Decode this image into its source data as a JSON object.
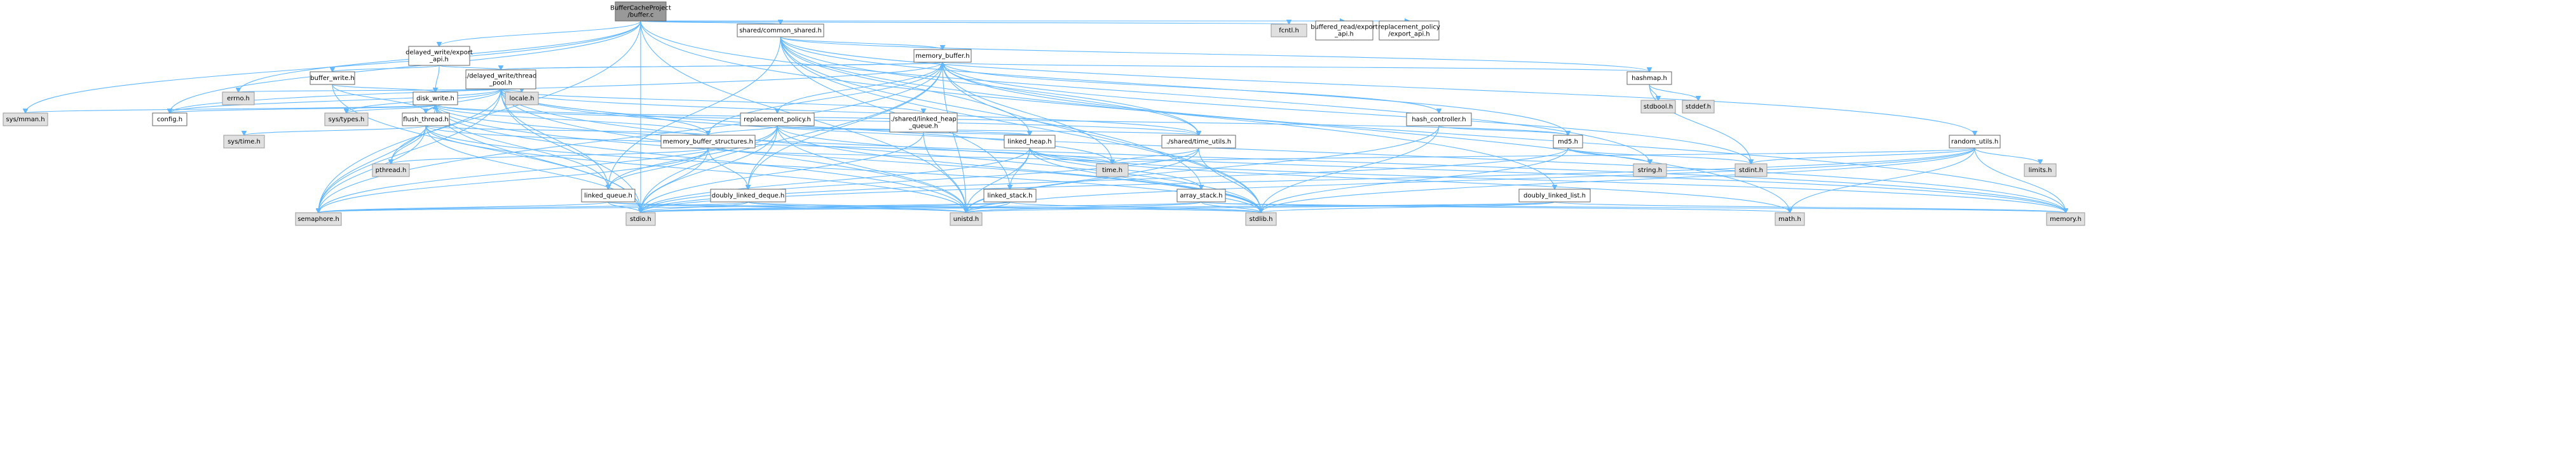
{
  "title": "",
  "nodes": [
    {
      "id": "root",
      "label": "BufferCacheProject\n/buffer.c",
      "kind": "root"
    },
    {
      "id": "fcntl",
      "label": "fcntl.h",
      "kind": "sys"
    },
    {
      "id": "buffered_read",
      "label": "buffered_read/export\n_api.h",
      "kind": "file"
    },
    {
      "id": "repl_export",
      "label": "replacement_policy\n/export_api.h",
      "kind": "file"
    },
    {
      "id": "shared_common",
      "label": "shared/common_shared.h",
      "kind": "file"
    },
    {
      "id": "delayed_export",
      "label": "delayed_write/export\n_api.h",
      "kind": "file"
    },
    {
      "id": "memory_buffer",
      "label": "memory_buffer.h",
      "kind": "file"
    },
    {
      "id": "delayed_thread",
      "label": "./delayed_write/thread\n_pool.h",
      "kind": "file"
    },
    {
      "id": "buffer_write",
      "label": "buffer_write.h",
      "kind": "file"
    },
    {
      "id": "hashmap",
      "label": "hashmap.h",
      "kind": "file"
    },
    {
      "id": "stdbool",
      "label": "stdbool.h",
      "kind": "sys"
    },
    {
      "id": "stddef",
      "label": "stddef.h",
      "kind": "sys"
    },
    {
      "id": "errno",
      "label": "errno.h",
      "kind": "sys"
    },
    {
      "id": "locale",
      "label": "locale.h",
      "kind": "sys"
    },
    {
      "id": "disk_write",
      "label": "disk_write.h",
      "kind": "file"
    },
    {
      "id": "sys_mman",
      "label": "sys/mman.h",
      "kind": "sys"
    },
    {
      "id": "config",
      "label": "config.h",
      "kind": "file"
    },
    {
      "id": "sys_types",
      "label": "sys/types.h",
      "kind": "sys"
    },
    {
      "id": "flush_thread",
      "label": "flush_thread.h",
      "kind": "file"
    },
    {
      "id": "shared_lheap_q",
      "label": "./shared/linked_heap\n_queue.h",
      "kind": "file"
    },
    {
      "id": "repl_policy",
      "label": "replacement_policy.h",
      "kind": "file"
    },
    {
      "id": "hash_controller",
      "label": "hash_controller.h",
      "kind": "file"
    },
    {
      "id": "sys_time",
      "label": "sys/time.h",
      "kind": "sys"
    },
    {
      "id": "mem_structures",
      "label": "memory_buffer_structures.h",
      "kind": "file"
    },
    {
      "id": "linked_heap",
      "label": "linked_heap.h",
      "kind": "file"
    },
    {
      "id": "time_utils",
      "label": "./shared/time_utils.h",
      "kind": "file"
    },
    {
      "id": "md5",
      "label": "md5.h",
      "kind": "file"
    },
    {
      "id": "random_utils",
      "label": "random_utils.h",
      "kind": "file"
    },
    {
      "id": "pthread",
      "label": "pthread.h",
      "kind": "sys"
    },
    {
      "id": "time_h",
      "label": "time.h",
      "kind": "sys"
    },
    {
      "id": "string_h",
      "label": "string.h",
      "kind": "sys"
    },
    {
      "id": "stdint",
      "label": "stdint.h",
      "kind": "sys"
    },
    {
      "id": "limits",
      "label": "limits.h",
      "kind": "sys"
    },
    {
      "id": "linked_queue",
      "label": "linked_queue.h",
      "kind": "file"
    },
    {
      "id": "doubly_deque",
      "label": "doubly_linked_deque.h",
      "kind": "file"
    },
    {
      "id": "linked_stack",
      "label": "linked_stack.h",
      "kind": "file"
    },
    {
      "id": "array_stack",
      "label": "array_stack.h",
      "kind": "file"
    },
    {
      "id": "doubly_list",
      "label": "doubly_linked_list.h",
      "kind": "file"
    },
    {
      "id": "semaphore",
      "label": "semaphore.h",
      "kind": "sys"
    },
    {
      "id": "stdio",
      "label": "stdio.h",
      "kind": "sys"
    },
    {
      "id": "unistd",
      "label": "unistd.h",
      "kind": "sys"
    },
    {
      "id": "stdlib",
      "label": "stdlib.h",
      "kind": "sys"
    },
    {
      "id": "math",
      "label": "math.h",
      "kind": "sys"
    },
    {
      "id": "memory_h",
      "label": "memory.h",
      "kind": "sys"
    }
  ],
  "edges": [
    [
      "root",
      "fcntl"
    ],
    [
      "root",
      "buffered_read"
    ],
    [
      "root",
      "repl_export"
    ],
    [
      "root",
      "shared_common"
    ],
    [
      "root",
      "delayed_export"
    ],
    [
      "root",
      "errno"
    ],
    [
      "root",
      "sys_mman"
    ],
    [
      "root",
      "config"
    ],
    [
      "root",
      "semaphore"
    ],
    [
      "root",
      "stdio"
    ],
    [
      "root",
      "unistd"
    ],
    [
      "root",
      "string_h"
    ],
    [
      "root",
      "math"
    ],
    [
      "shared_common",
      "memory_buffer"
    ],
    [
      "shared_common",
      "hashmap"
    ],
    [
      "shared_common",
      "random_utils"
    ],
    [
      "shared_common",
      "md5"
    ],
    [
      "shared_common",
      "doubly_list"
    ],
    [
      "shared_common",
      "time_utils"
    ],
    [
      "shared_common",
      "linked_heap"
    ],
    [
      "shared_common",
      "linked_queue"
    ],
    [
      "shared_common",
      "linked_stack"
    ],
    [
      "shared_common",
      "array_stack"
    ],
    [
      "shared_common",
      "stdlib"
    ],
    [
      "delayed_export",
      "delayed_thread"
    ],
    [
      "delayed_export",
      "buffer_write"
    ],
    [
      "delayed_export",
      "disk_write"
    ],
    [
      "memory_buffer",
      "delayed_thread"
    ],
    [
      "memory_buffer",
      "repl_policy"
    ],
    [
      "memory_buffer",
      "hash_controller"
    ],
    [
      "memory_buffer",
      "mem_structures"
    ],
    [
      "memory_buffer",
      "time_utils"
    ],
    [
      "memory_buffer",
      "hashmap"
    ],
    [
      "memory_buffer",
      "config"
    ],
    [
      "memory_buffer",
      "semaphore"
    ],
    [
      "memory_buffer",
      "stdio"
    ],
    [
      "memory_buffer",
      "unistd"
    ],
    [
      "memory_buffer",
      "stdint"
    ],
    [
      "memory_buffer",
      "doubly_deque"
    ],
    [
      "memory_buffer",
      "memory_h"
    ],
    [
      "memory_buffer",
      "time_h"
    ],
    [
      "memory_buffer",
      "stdlib"
    ],
    [
      "delayed_thread",
      "memory_buffer"
    ],
    [
      "delayed_thread",
      "locale"
    ],
    [
      "delayed_thread",
      "errno"
    ],
    [
      "delayed_thread",
      "disk_write"
    ],
    [
      "delayed_thread",
      "flush_thread"
    ],
    [
      "delayed_thread",
      "shared_lheap_q"
    ],
    [
      "delayed_thread",
      "mem_structures"
    ],
    [
      "delayed_thread",
      "linked_queue"
    ],
    [
      "delayed_thread",
      "time_utils"
    ],
    [
      "delayed_thread",
      "config"
    ],
    [
      "delayed_thread",
      "pthread"
    ],
    [
      "delayed_thread",
      "semaphore"
    ],
    [
      "delayed_thread",
      "stdio"
    ],
    [
      "delayed_thread",
      "unistd"
    ],
    [
      "delayed_thread",
      "stdlib"
    ],
    [
      "delayed_thread",
      "sys_types"
    ],
    [
      "delayed_thread",
      "memory_h"
    ],
    [
      "delayed_thread",
      "time_h"
    ],
    [
      "buffer_write",
      "disk_write"
    ],
    [
      "buffer_write",
      "flush_thread"
    ],
    [
      "buffer_write",
      "stdio"
    ],
    [
      "hashmap",
      "stdbool"
    ],
    [
      "hashmap",
      "stddef"
    ],
    [
      "hashmap",
      "stdint"
    ],
    [
      "disk_write",
      "flush_thread"
    ],
    [
      "disk_write",
      "sys_mman"
    ],
    [
      "disk_write",
      "config"
    ],
    [
      "disk_write",
      "sys_types"
    ],
    [
      "disk_write",
      "md5"
    ],
    [
      "disk_write",
      "mem_structures"
    ],
    [
      "disk_write",
      "linked_queue"
    ],
    [
      "disk_write",
      "time_utils"
    ],
    [
      "disk_write",
      "stdio"
    ],
    [
      "disk_write",
      "unistd"
    ],
    [
      "disk_write",
      "stdlib"
    ],
    [
      "disk_write",
      "memory_h"
    ],
    [
      "disk_write",
      "semaphore"
    ],
    [
      "flush_thread",
      "disk_write"
    ],
    [
      "flush_thread",
      "sys_time"
    ],
    [
      "flush_thread",
      "mem_structures"
    ],
    [
      "flush_thread",
      "pthread"
    ],
    [
      "flush_thread",
      "semaphore"
    ],
    [
      "flush_thread",
      "stdio"
    ],
    [
      "flush_thread",
      "unistd"
    ],
    [
      "flush_thread",
      "stdlib"
    ],
    [
      "flush_thread",
      "time_h"
    ],
    [
      "shared_lheap_q",
      "linked_heap"
    ],
    [
      "shared_lheap_q",
      "unistd"
    ],
    [
      "shared_lheap_q",
      "stdio"
    ],
    [
      "repl_policy",
      "mem_structures"
    ],
    [
      "repl_policy",
      "linked_heap"
    ],
    [
      "repl_policy",
      "doubly_deque"
    ],
    [
      "repl_policy",
      "time_utils"
    ],
    [
      "repl_policy",
      "linked_queue"
    ],
    [
      "repl_policy",
      "semaphore"
    ],
    [
      "repl_policy",
      "stdio"
    ],
    [
      "repl_policy",
      "unistd"
    ],
    [
      "repl_policy",
      "stdlib"
    ],
    [
      "repl_policy",
      "memory_h"
    ],
    [
      "hash_controller",
      "md5"
    ],
    [
      "hash_controller",
      "stdlib"
    ],
    [
      "hash_controller",
      "unistd"
    ],
    [
      "mem_structures",
      "doubly_deque"
    ],
    [
      "mem_structures",
      "linked_queue"
    ],
    [
      "mem_structures",
      "pthread"
    ],
    [
      "mem_structures",
      "semaphore"
    ],
    [
      "mem_structures",
      "stdio"
    ],
    [
      "mem_structures",
      "time_h"
    ],
    [
      "linked_heap",
      "linked_stack"
    ],
    [
      "linked_heap",
      "array_stack"
    ],
    [
      "linked_heap",
      "stdio"
    ],
    [
      "linked_heap",
      "stdlib"
    ],
    [
      "linked_heap",
      "unistd"
    ],
    [
      "linked_heap",
      "math"
    ],
    [
      "linked_heap",
      "memory_h"
    ],
    [
      "time_utils",
      "time_h"
    ],
    [
      "time_utils",
      "stdio"
    ],
    [
      "time_utils",
      "stdlib"
    ],
    [
      "time_utils",
      "unistd"
    ],
    [
      "md5",
      "string_h"
    ],
    [
      "md5",
      "stdint"
    ],
    [
      "md5",
      "stdlib"
    ],
    [
      "md5",
      "stdio"
    ],
    [
      "random_utils",
      "limits"
    ],
    [
      "random_utils",
      "stdint"
    ],
    [
      "random_utils",
      "time_h"
    ],
    [
      "random_utils",
      "stdlib"
    ],
    [
      "random_utils",
      "stdio"
    ],
    [
      "random_utils",
      "unistd"
    ],
    [
      "random_utils",
      "memory_h"
    ],
    [
      "random_utils",
      "math"
    ],
    [
      "linked_queue",
      "semaphore"
    ],
    [
      "linked_queue",
      "stdio"
    ],
    [
      "linked_queue",
      "unistd"
    ],
    [
      "linked_queue",
      "stdlib"
    ],
    [
      "doubly_deque",
      "stdio"
    ],
    [
      "doubly_deque",
      "unistd"
    ],
    [
      "doubly_deque",
      "stdlib"
    ],
    [
      "doubly_deque",
      "semaphore"
    ],
    [
      "linked_stack",
      "stdio"
    ],
    [
      "linked_stack",
      "stdlib"
    ],
    [
      "linked_stack",
      "unistd"
    ],
    [
      "linked_stack",
      "semaphore"
    ],
    [
      "array_stack",
      "stdio"
    ],
    [
      "array_stack",
      "stdlib"
    ],
    [
      "array_stack",
      "unistd"
    ],
    [
      "array_stack",
      "memory_h"
    ],
    [
      "array_stack",
      "math"
    ],
    [
      "doubly_list",
      "stdio"
    ],
    [
      "doubly_list",
      "stdlib"
    ],
    [
      "doubly_list",
      "unistd"
    ],
    [
      "doubly_list",
      "memory_h"
    ]
  ]
}
